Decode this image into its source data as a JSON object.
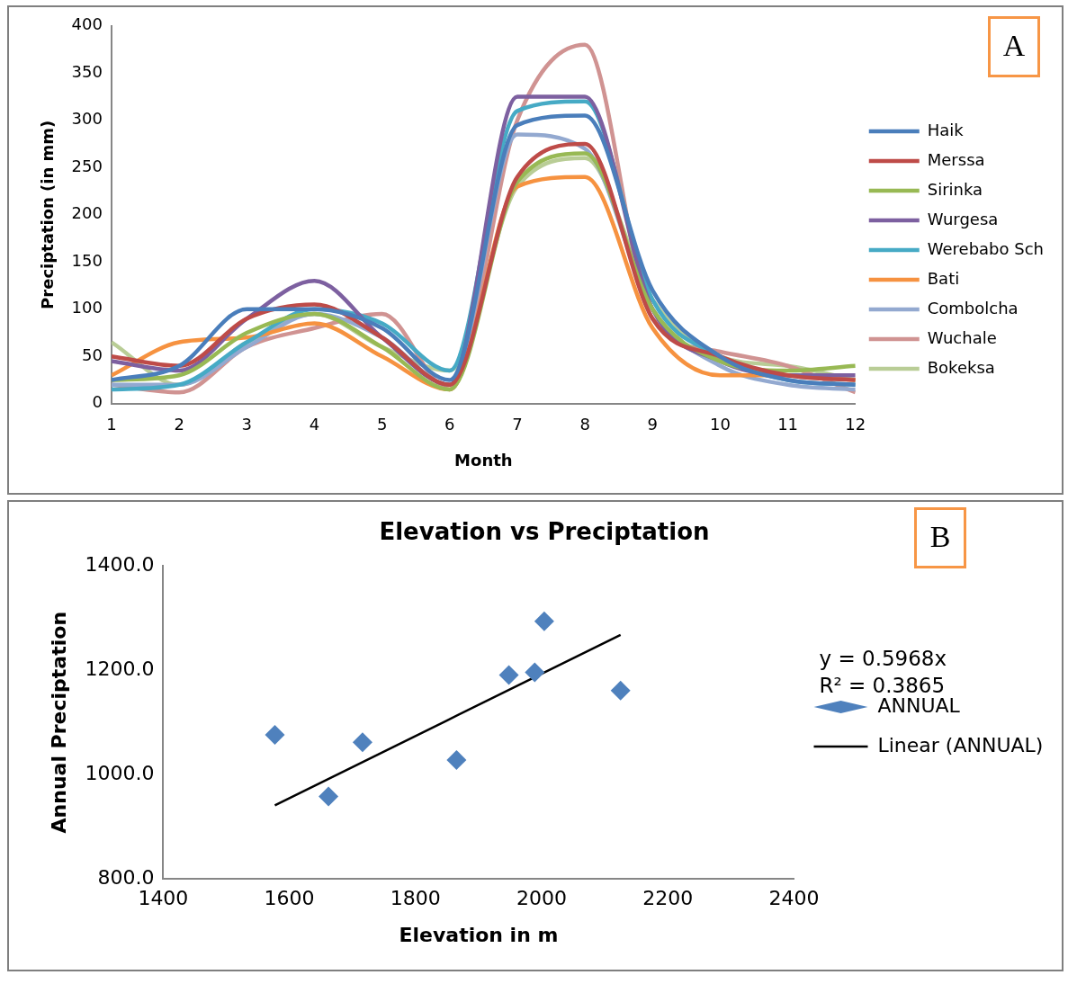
{
  "chart_data": [
    {
      "type": "line",
      "xlabel": "Month",
      "ylabel": "Preciptation (in mm)",
      "annotations": [
        "A"
      ],
      "x": [
        1,
        2,
        3,
        4,
        5,
        6,
        7,
        8,
        9,
        10,
        11,
        12
      ],
      "xlim": [
        1,
        12
      ],
      "xticks": [
        1,
        2,
        3,
        4,
        5,
        6,
        7,
        8,
        9,
        10,
        11,
        12
      ],
      "series": [
        {
          "name": "Haik",
          "color": "#4a7ebb",
          "values": [
            25,
            40,
            100,
            100,
            80,
            25,
            295,
            305,
            120,
            50,
            25,
            20
          ]
        },
        {
          "name": "Merssa",
          "color": "#be4b48",
          "values": [
            50,
            40,
            90,
            105,
            70,
            20,
            240,
            275,
            90,
            50,
            30,
            25
          ]
        },
        {
          "name": "Sirinka",
          "color": "#98b954",
          "values": [
            25,
            30,
            75,
            95,
            60,
            15,
            235,
            265,
            100,
            45,
            35,
            40
          ]
        },
        {
          "name": "Wurgesa",
          "color": "#7d60a0",
          "values": [
            45,
            35,
            90,
            130,
            70,
            20,
            325,
            325,
            100,
            45,
            30,
            30
          ]
        },
        {
          "name": "Werebabo Sch",
          "color": "#46aac5",
          "values": [
            15,
            20,
            65,
            100,
            85,
            35,
            310,
            320,
            110,
            50,
            25,
            20
          ]
        },
        {
          "name": "Bati",
          "color": "#f69240",
          "values": [
            30,
            65,
            70,
            85,
            50,
            15,
            230,
            240,
            80,
            30,
            30,
            25
          ]
        },
        {
          "name": "Combolcha",
          "color": "#93a9d0",
          "values": [
            20,
            20,
            60,
            95,
            70,
            20,
            285,
            270,
            100,
            40,
            20,
            15
          ]
        },
        {
          "name": "Wuchale",
          "color": "#d09392",
          "values": [
            20,
            12,
            60,
            80,
            95,
            15,
            300,
            380,
            90,
            55,
            40,
            12
          ]
        },
        {
          "name": "Bokeksa",
          "color": "#b9cd96",
          "values": [
            65,
            20,
            65,
            95,
            60,
            35,
            230,
            260,
            110,
            50,
            40,
            25
          ]
        }
      ],
      "ylim": [
        0,
        400
      ],
      "yticks": [
        0,
        50,
        100,
        150,
        200,
        250,
        300,
        350,
        400
      ],
      "grid": false,
      "legend": "right",
      "marker": "none"
    },
    {
      "type": "scatter",
      "title": "Elevation vs Preciptation",
      "xlabel": "Elevation in m",
      "ylabel": "Annual Preciptation",
      "annotations": [
        "B",
        "y = 0.5968x",
        "R² = 0.3865"
      ],
      "series": [
        {
          "name": "ANNUAL",
          "color": "#4f81bd",
          "x": [
            1577,
            1662,
            1716,
            1865,
            1948,
            1989,
            2004,
            2125
          ],
          "values": [
            1076,
            958,
            1062,
            1028,
            1191,
            1196,
            1294,
            1161
          ]
        },
        {
          "name": "Linear (ANNUAL)",
          "type": "line",
          "color": "#000000",
          "marker": "none",
          "x": [
            1577,
            2125
          ],
          "values": [
            941,
            1268
          ]
        }
      ],
      "xlim": [
        1400,
        2400
      ],
      "xticks": [
        1400,
        1600,
        1800,
        2000,
        2200,
        2400
      ],
      "ylim": [
        800,
        1400
      ],
      "yticks": [
        {
          "value": 800,
          "label": "800.0"
        },
        {
          "value": 1000,
          "label": "1000.0"
        },
        {
          "value": 1200,
          "label": "1200.0"
        },
        {
          "value": 1400,
          "label": "1400.0"
        }
      ],
      "grid": false,
      "legend": "right",
      "marker": "diamond"
    }
  ]
}
